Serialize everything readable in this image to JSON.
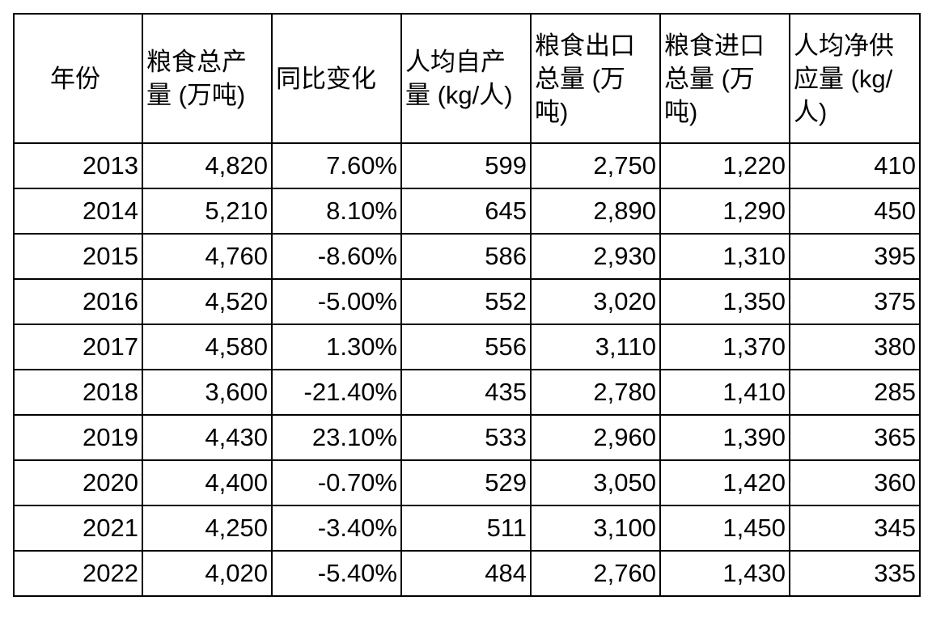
{
  "table": {
    "header": [
      "年份",
      "粮食总产量 (万吨)",
      "同比变化",
      "人均自产量 (kg/人)",
      "粮食出口总量 (万吨)",
      "粮食进口总量 (万吨)",
      "人均净供应量 (kg/人)"
    ],
    "rows": [
      [
        "2013",
        "4,820",
        "7.60%",
        "599",
        "2,750",
        "1,220",
        "410"
      ],
      [
        "2014",
        "5,210",
        "8.10%",
        "645",
        "2,890",
        "1,290",
        "450"
      ],
      [
        "2015",
        "4,760",
        "-8.60%",
        "586",
        "2,930",
        "1,310",
        "395"
      ],
      [
        "2016",
        "4,520",
        "-5.00%",
        "552",
        "3,020",
        "1,350",
        "375"
      ],
      [
        "2017",
        "4,580",
        "1.30%",
        "556",
        "3,110",
        "1,370",
        "380"
      ],
      [
        "2018",
        "3,600",
        "-21.40%",
        "435",
        "2,780",
        "1,410",
        "285"
      ],
      [
        "2019",
        "4,430",
        "23.10%",
        "533",
        "2,960",
        "1,390",
        "365"
      ],
      [
        "2020",
        "4,400",
        "-0.70%",
        "529",
        "3,050",
        "1,420",
        "360"
      ],
      [
        "2021",
        "4,250",
        "-3.40%",
        "511",
        "3,100",
        "1,450",
        "345"
      ],
      [
        "2022",
        "4,020",
        "-5.40%",
        "484",
        "2,760",
        "1,430",
        "335"
      ]
    ]
  }
}
